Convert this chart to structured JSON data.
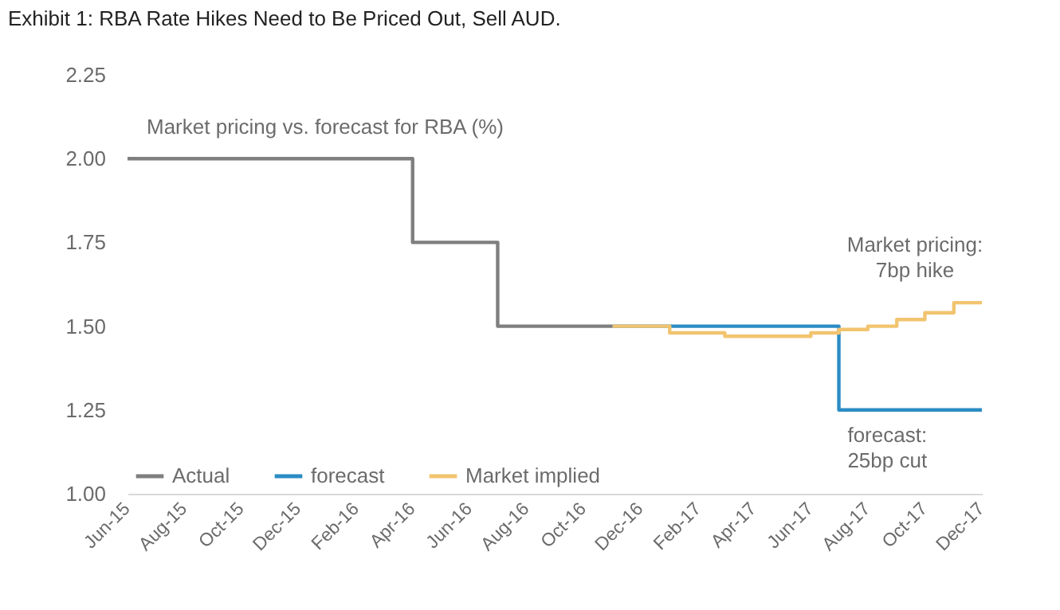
{
  "chart_data": {
    "type": "step",
    "title": "Exhibit 1:  RBA Rate Hikes Need to Be Priced Out, Sell AUD.",
    "subtitle": "Market pricing vs. forecast for RBA (%)",
    "ylim": [
      1.0,
      2.25
    ],
    "yticks": [
      {
        "value": 1.0,
        "label": "1.00"
      },
      {
        "value": 1.25,
        "label": "1.25"
      },
      {
        "value": 1.5,
        "label": "1.50"
      },
      {
        "value": 1.75,
        "label": "1.75"
      },
      {
        "value": 2.0,
        "label": "2.00"
      },
      {
        "value": 2.25,
        "label": "2.25"
      }
    ],
    "xlim": [
      "2015-06",
      "2017-12"
    ],
    "xticks": [
      {
        "value": "2015-06",
        "label": "Jun-15"
      },
      {
        "value": "2015-08",
        "label": "Aug-15"
      },
      {
        "value": "2015-10",
        "label": "Oct-15"
      },
      {
        "value": "2015-12",
        "label": "Dec-15"
      },
      {
        "value": "2016-02",
        "label": "Feb-16"
      },
      {
        "value": "2016-04",
        "label": "Apr-16"
      },
      {
        "value": "2016-06",
        "label": "Jun-16"
      },
      {
        "value": "2016-08",
        "label": "Aug-16"
      },
      {
        "value": "2016-10",
        "label": "Oct-16"
      },
      {
        "value": "2016-12",
        "label": "Dec-16"
      },
      {
        "value": "2017-02",
        "label": "Feb-17"
      },
      {
        "value": "2017-04",
        "label": "Apr-17"
      },
      {
        "value": "2017-06",
        "label": "Jun-17"
      },
      {
        "value": "2017-08",
        "label": "Aug-17"
      },
      {
        "value": "2017-10",
        "label": "Oct-17"
      },
      {
        "value": "2017-12",
        "label": "Dec-17"
      }
    ],
    "legend": "bottom",
    "series": [
      {
        "name": "Actual",
        "color": "#7f7f7f",
        "x": [
          "2015-06",
          "2016-04",
          "2016-07",
          "2016-11"
        ],
        "values": [
          2.0,
          1.75,
          1.5,
          1.5
        ]
      },
      {
        "name": "forecast",
        "color": "#2b8cc4",
        "x": [
          "2016-11",
          "2017-07",
          "2017-12"
        ],
        "values": [
          1.5,
          1.25,
          1.25
        ]
      },
      {
        "name": "Market implied",
        "color": "#f2c46f",
        "x": [
          "2016-11",
          "2016-12",
          "2017-01",
          "2017-02",
          "2017-03",
          "2017-04",
          "2017-05",
          "2017-06",
          "2017-07",
          "2017-08",
          "2017-09",
          "2017-10",
          "2017-11",
          "2017-12"
        ],
        "values": [
          1.5,
          1.5,
          1.48,
          1.48,
          1.47,
          1.47,
          1.47,
          1.48,
          1.49,
          1.5,
          1.52,
          1.54,
          1.57,
          1.57
        ]
      }
    ],
    "annotations": [
      {
        "text": "Market pricing:\n7bp hike",
        "x": "2017-12",
        "y": 1.57
      },
      {
        "text": "forecast:\n25bp cut",
        "x": "2017-09",
        "y": 1.25
      }
    ]
  }
}
